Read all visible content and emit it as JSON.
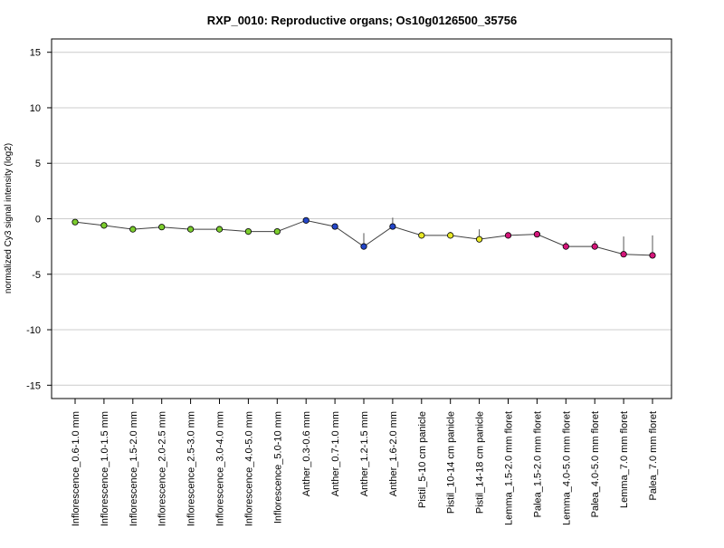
{
  "chart_data": {
    "type": "line",
    "title": "RXP_0010: Reproductive organs; Os10g0126500_35756",
    "xlabel": "",
    "ylabel": "normalized Cy3 signal intensity (log2)",
    "ylim": [
      -16.2,
      16.2
    ],
    "yticks": [
      15,
      10,
      5,
      0,
      -5,
      -10,
      -15
    ],
    "ytick_labels": [
      "15",
      "10",
      "5",
      "0",
      "-5",
      "-10",
      "-15"
    ],
    "grid": true,
    "categories": [
      "Inflorescence_0.6-1.0 mm",
      "Inflorescence_1.0-1.5 mm",
      "Inflorescence_1.5-2.0 mm",
      "Inflorescence_2.0-2.5 mm",
      "Inflorescence_2.5-3.0 mm",
      "Inflorescence_3.0-4.0 mm",
      "Inflorescence_4.0-5.0 mm",
      "Inflorescence_5.0-10 mm",
      "Anther_0.3-0.6 mm",
      "Anther_0.7-1.0 mm",
      "Anther_1.2-1.5 mm",
      "Anther_1.6-2.0 mm",
      "Pistil_5-10 cm panicle",
      "Pistil_10-14 cm panicle",
      "Pistil_14-18 cm panicle",
      "Lemma_1.5-2.0 mm floret",
      "Palea_1.5-2.0 mm floret",
      "Lemma_4.0-5.0 mm floret",
      "Palea_4.0-5.0 mm floret",
      "Lemma_7.0 mm floret",
      "Palea_7.0 mm floret"
    ],
    "series": [
      {
        "values": [
          -0.3,
          -0.6,
          -0.95,
          -0.75,
          -0.95,
          -0.95,
          -1.15,
          -1.15,
          -0.15,
          -0.7,
          -2.5,
          -0.7,
          -1.5,
          -1.5,
          -1.85,
          -1.5,
          -1.4,
          -2.5,
          -2.5,
          -3.2,
          -3.3
        ],
        "error_upper": [
          0.05,
          0.05,
          0.05,
          0.05,
          0.05,
          0.05,
          0.05,
          0.05,
          0.05,
          0.2,
          1.2,
          0.8,
          0.05,
          0.3,
          0.9,
          0.05,
          0.05,
          0.4,
          0.5,
          1.6,
          1.8
        ],
        "marker_colors": [
          "#7ccd2e",
          "#7ccd2e",
          "#7ccd2e",
          "#7ccd2e",
          "#7ccd2e",
          "#7ccd2e",
          "#7ccd2e",
          "#7ccd2e",
          "#2446c8",
          "#2446c8",
          "#2446c8",
          "#2446c8",
          "#e8e826",
          "#e8e826",
          "#e8e826",
          "#d4157a",
          "#d4157a",
          "#d4157a",
          "#d4157a",
          "#d4157a",
          "#d4157a"
        ],
        "line_color": "#404040"
      }
    ]
  }
}
